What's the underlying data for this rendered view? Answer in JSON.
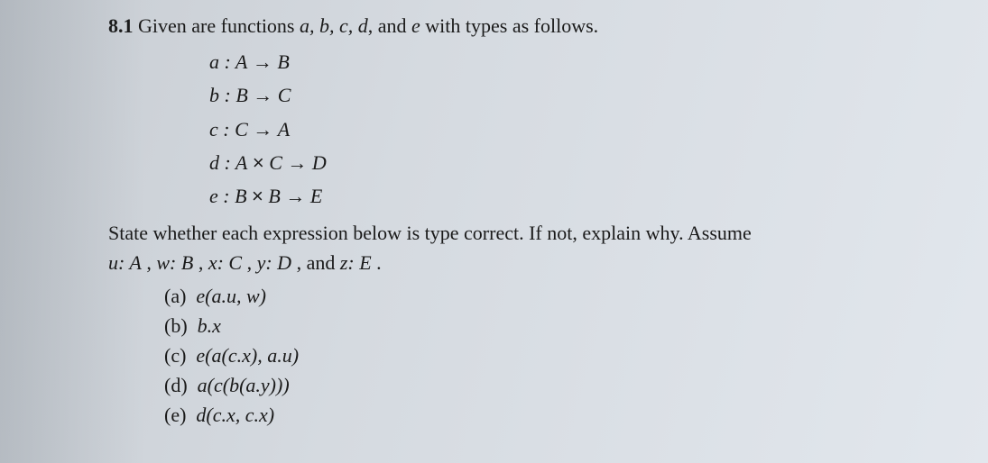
{
  "problem": {
    "number": "8.1",
    "intro_pre": "Given are functions ",
    "intro_funcs": "a, b, c, d",
    "intro_mid": ", and ",
    "intro_funcs2": "e",
    "intro_post": " with types as follows."
  },
  "types": {
    "a_lhs": "a : A",
    "a_rhs": "B",
    "b_lhs": "b : B",
    "b_rhs": "C",
    "c_lhs": "c : C",
    "c_rhs": "A",
    "d_lhs": "d : A",
    "d_mid": "C",
    "d_rhs": "D",
    "e_lhs": "e : B",
    "e_mid": "B",
    "e_rhs": "E",
    "arrow": "→",
    "times": "×"
  },
  "mid": {
    "line1": "State whether each expression below is type correct. If not, explain why. Assume",
    "vars_u": "u: A",
    "vars_w": "w: B",
    "vars_x": "x: C",
    "vars_y": "y: D",
    "vars_z": "z: E",
    "sep": " ,  ",
    "and": " , and ",
    "period": " ."
  },
  "parts": {
    "a_label": "(a)",
    "a_expr": "e(a.u, w)",
    "b_label": "(b)",
    "b_expr": "b.x",
    "c_label": "(c)",
    "c_expr": "e(a(c.x), a.u)",
    "d_label": "(d)",
    "d_expr": "a(c(b(a.y)))",
    "e_label": "(e)",
    "e_expr": "d(c.x, c.x)"
  }
}
